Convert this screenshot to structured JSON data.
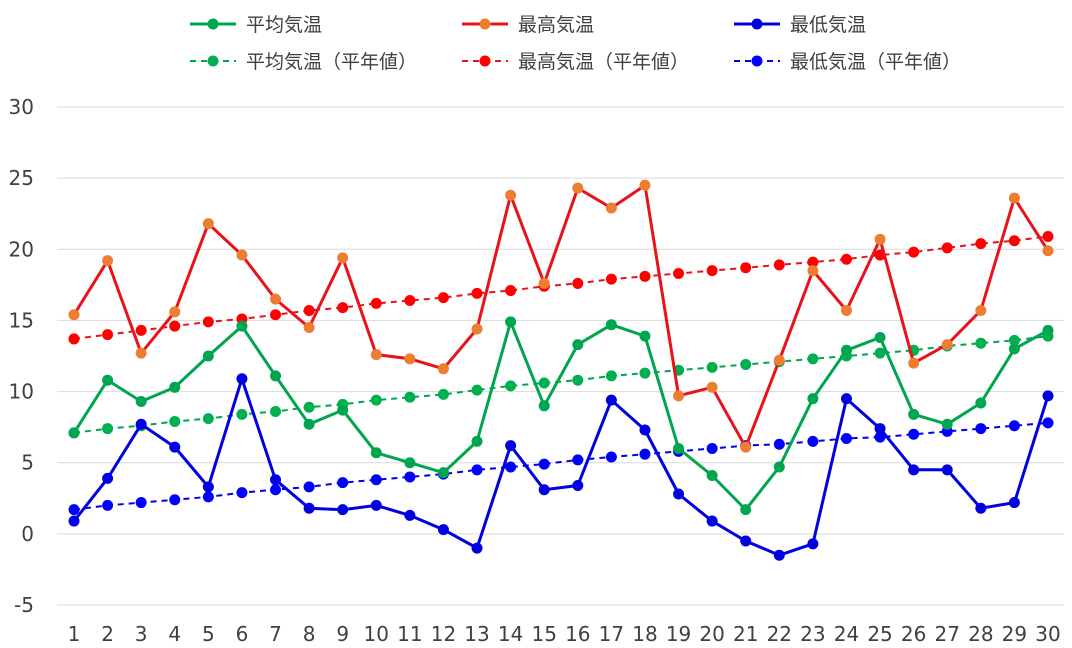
{
  "chart_data": {
    "type": "line",
    "x": [
      1,
      2,
      3,
      4,
      5,
      6,
      7,
      8,
      9,
      10,
      11,
      12,
      13,
      14,
      15,
      16,
      17,
      18,
      19,
      20,
      21,
      22,
      23,
      24,
      25,
      26,
      27,
      28,
      29,
      30
    ],
    "ylim": [
      -5,
      30
    ],
    "yticks": [
      -5,
      0,
      5,
      10,
      15,
      20,
      25,
      30
    ],
    "grid": "horizontal",
    "legend_position": "top",
    "series": [
      {
        "name": "平均気温",
        "color": "#00a550",
        "style": "solid",
        "marker_color": "#00a550",
        "values": [
          7.1,
          10.8,
          9.3,
          10.3,
          12.5,
          14.6,
          11.1,
          7.7,
          8.7,
          5.7,
          5.0,
          4.3,
          6.5,
          14.9,
          9.0,
          13.3,
          14.7,
          13.9,
          6.0,
          4.1,
          1.7,
          4.7,
          9.5,
          12.9,
          13.8,
          8.4,
          7.7,
          9.2,
          13.0,
          14.3
        ]
      },
      {
        "name": "最高気温",
        "color": "#e8121b",
        "style": "solid",
        "marker_color": "#ed7d31",
        "values": [
          15.4,
          19.2,
          12.7,
          15.6,
          21.8,
          19.6,
          16.5,
          14.5,
          19.4,
          12.6,
          12.3,
          11.6,
          14.4,
          23.8,
          17.6,
          24.3,
          22.9,
          24.5,
          9.7,
          10.3,
          6.1,
          12.2,
          18.5,
          15.7,
          20.7,
          12.0,
          13.3,
          15.7,
          23.6,
          19.9
        ]
      },
      {
        "name": "最低気温",
        "color": "#0000e0",
        "style": "solid",
        "marker_color": "#0000e0",
        "values": [
          0.9,
          3.9,
          7.7,
          6.1,
          3.3,
          10.9,
          3.8,
          1.8,
          1.7,
          2.0,
          1.3,
          0.3,
          -1.0,
          6.2,
          3.1,
          3.4,
          9.4,
          7.3,
          2.8,
          0.9,
          -0.5,
          -1.5,
          -0.7,
          9.5,
          7.4,
          4.5,
          4.5,
          1.8,
          2.2,
          9.7
        ]
      },
      {
        "name": "平均気温（平年値）",
        "color": "#00a550",
        "style": "dashed",
        "marker_color": "#00b050",
        "values": [
          7.1,
          7.4,
          7.6,
          7.9,
          8.1,
          8.4,
          8.6,
          8.9,
          9.1,
          9.4,
          9.6,
          9.8,
          10.1,
          10.4,
          10.6,
          10.8,
          11.1,
          11.3,
          11.5,
          11.7,
          11.9,
          12.1,
          12.3,
          12.5,
          12.7,
          12.9,
          13.2,
          13.4,
          13.6,
          13.9
        ]
      },
      {
        "name": "最高気温（平年値）",
        "color": "#e8121b",
        "style": "dashed",
        "marker_color": "#ff0000",
        "values": [
          13.7,
          14.0,
          14.3,
          14.6,
          14.9,
          15.1,
          15.4,
          15.7,
          15.9,
          16.2,
          16.4,
          16.6,
          16.9,
          17.1,
          17.4,
          17.6,
          17.9,
          18.1,
          18.3,
          18.5,
          18.7,
          18.9,
          19.1,
          19.3,
          19.6,
          19.8,
          20.1,
          20.4,
          20.6,
          20.9
        ]
      },
      {
        "name": "最低気温（平年値）",
        "color": "#0000e0",
        "style": "dashed",
        "marker_color": "#0000ff",
        "values": [
          1.7,
          2.0,
          2.2,
          2.4,
          2.6,
          2.9,
          3.1,
          3.3,
          3.6,
          3.8,
          4.0,
          4.2,
          4.5,
          4.7,
          4.9,
          5.2,
          5.4,
          5.6,
          5.8,
          6.0,
          6.2,
          6.3,
          6.5,
          6.7,
          6.8,
          7.0,
          7.2,
          7.4,
          7.6,
          7.8
        ]
      }
    ]
  }
}
